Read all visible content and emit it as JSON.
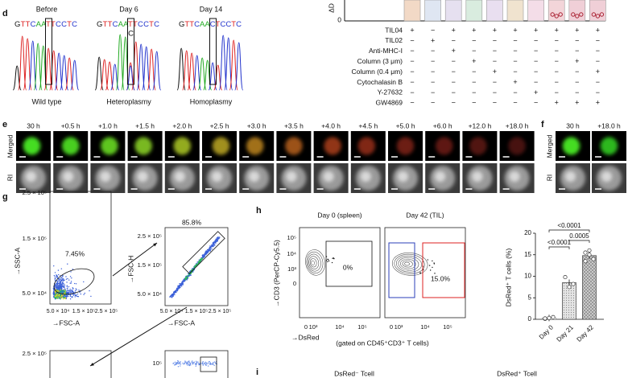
{
  "panel_d": {
    "label": "d",
    "samples": [
      {
        "title": "Before",
        "sequence": "GTTCAATTCCTC",
        "caption": "Wild type"
      },
      {
        "title": "Day 6",
        "sequence": "GTTCAATTCCTC",
        "variant": "C",
        "caption": "Heteroplasmy"
      },
      {
        "title": "Day 14",
        "sequence": "GTTCAACTCCTC",
        "caption": "Homoplasmy"
      }
    ],
    "axis_tick": "0",
    "axis_label": "ΔD",
    "conditions": [
      {
        "name": "TIL04",
        "marks": [
          "+",
          "−",
          "+",
          "+",
          "+",
          "+",
          "+",
          "+",
          "+",
          "+"
        ]
      },
      {
        "name": "TIL02",
        "marks": [
          "−",
          "+",
          "−",
          "−",
          "−",
          "−",
          "−",
          "−",
          "−",
          "−"
        ]
      },
      {
        "name": "Anti-MHC-I",
        "marks": [
          "−",
          "−",
          "+",
          "−",
          "−",
          "−",
          "−",
          "−",
          "−",
          "−"
        ]
      },
      {
        "name": "Column (3 μm)",
        "marks": [
          "−",
          "−",
          "−",
          "+",
          "−",
          "−",
          "−",
          "−",
          "+",
          "−"
        ]
      },
      {
        "name": "Column (0.4 μm)",
        "marks": [
          "−",
          "−",
          "−",
          "−",
          "+",
          "−",
          "−",
          "−",
          "−",
          "+"
        ]
      },
      {
        "name": "Cytochalasin B",
        "marks": [
          "−",
          "−",
          "−",
          "−",
          "−",
          "+",
          "−",
          "−",
          "−",
          "−"
        ]
      },
      {
        "name": "Y-27632",
        "marks": [
          "−",
          "−",
          "−",
          "−",
          "−",
          "−",
          "+",
          "−",
          "−",
          "−"
        ]
      },
      {
        "name": "GW4869",
        "marks": [
          "−",
          "−",
          "−",
          "−",
          "−",
          "−",
          "−",
          "+",
          "+",
          "+"
        ]
      }
    ]
  },
  "panel_e": {
    "label": "e",
    "timepoints": [
      "30 h",
      "+0.5 h",
      "+1.0 h",
      "+1.5 h",
      "+2.0 h",
      "+2.5 h",
      "+3.0 h",
      "+3.5 h",
      "+4.0 h",
      "+4.5 h",
      "+5.0 h",
      "+6.0 h",
      "+12.0 h",
      "+18.0 h"
    ],
    "rows": [
      "Merged",
      "RI"
    ]
  },
  "panel_f": {
    "label": "f",
    "timepoints": [
      "30 h",
      "+18.0 h"
    ],
    "rows": [
      "Merged",
      "RI"
    ]
  },
  "panel_g": {
    "label": "g",
    "plots": [
      {
        "yticks": [
          "2.5 × 10⁵",
          "1.5 × 10⁵",
          "5.0 × 10⁴"
        ],
        "xticks": [
          "5.0 × 10⁴",
          "1.5 × 10⁵",
          "2.5 × 10⁵"
        ],
        "y_axis": "→SSC-A",
        "x_axis": "→FSC-A",
        "gate": "7.45%"
      },
      {
        "yticks": [
          "2.5 × 10⁵",
          "1.5 × 10⁵",
          "5.0 × 10⁴"
        ],
        "xticks": [
          "5.0 × 10⁴",
          "1.5 × 10⁵",
          "2.5 × 10⁵"
        ],
        "y_axis": "→FSC-H",
        "x_axis": "→FSC-A",
        "gate": "85.8%"
      },
      {
        "yticks": [
          "2.5 × 10⁵"
        ]
      },
      {
        "yticks": [
          "10⁵"
        ]
      }
    ]
  },
  "panel_h": {
    "label": "h",
    "plots": [
      {
        "title": "Day 0 (spleen)",
        "gate": "0%"
      },
      {
        "title": "Day 42 (TIL)",
        "gate": "15.0%"
      }
    ],
    "yticks": [
      "10⁵",
      "10⁴",
      "10³",
      "0"
    ],
    "xticks": [
      "0",
      "10³",
      "10⁴",
      "10⁵"
    ],
    "y_axis": "→CD3 (PerCP-Cy5.5)",
    "x_axis": "→DsRed",
    "note": "(gated on CD45⁺CD3⁺ T cells)",
    "chart": {
      "type": "bar",
      "ylabel": "DsRed⁺ T cells (%)",
      "categories": [
        "Day 0",
        "Day 21",
        "Day 42"
      ],
      "values": [
        0.3,
        8.5,
        14.8
      ],
      "points": [
        [
          0.1,
          0.3,
          0.5,
          0.2
        ],
        [
          9.8,
          7.5,
          8.2
        ],
        [
          15.5,
          16,
          14,
          13.5,
          15
        ]
      ],
      "colors": [
        "#ffffff",
        "#e4e4e4",
        "#d0d0d0"
      ],
      "ylim": [
        0,
        20
      ],
      "yticks": [
        0,
        5,
        10,
        15,
        20
      ],
      "p_values": [
        "<0.0001",
        "<0.0001",
        "0.0005"
      ]
    }
  },
  "panel_i": {
    "label": "i",
    "titles": [
      "DsRed⁻ Tcell",
      "DsRed⁺ Tcell"
    ]
  }
}
